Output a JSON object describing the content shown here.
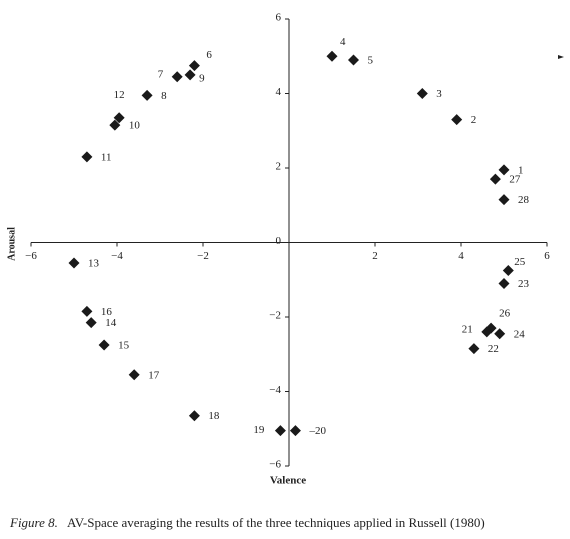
{
  "chart_data": {
    "type": "scatter",
    "xlabel": "Valence",
    "ylabel": "Arousal",
    "caption_label": "Figure 8.",
    "caption": "AV-Space averaging the results of the three techniques applied in Russell (1980)",
    "xlim": [
      -6,
      6
    ],
    "ylim": [
      -6,
      6
    ],
    "xticks": [
      {
        "value": -6,
        "label": "−6"
      },
      {
        "value": -4,
        "label": "−4"
      },
      {
        "value": -2,
        "label": "−2"
      },
      2,
      4,
      6
    ],
    "yticks": [
      {
        "value": -6,
        "label": "−6"
      },
      {
        "value": -4,
        "label": "−4"
      },
      {
        "value": -2,
        "label": "−2"
      },
      0,
      2,
      4,
      6
    ],
    "color": "#1a1a1a",
    "x": [
      5.0,
      3.9,
      3.1,
      1.0,
      1.5,
      -2.2,
      -2.6,
      -3.3,
      -2.3,
      -4.05,
      -4.7,
      -3.95,
      -5.0,
      -4.6,
      -4.3,
      -4.7,
      -3.6,
      -2.2,
      -0.2,
      0.15,
      4.6,
      4.3,
      5.0,
      4.9,
      5.1,
      4.7,
      4.8,
      5.0
    ],
    "values": [
      1.95,
      3.3,
      4.0,
      5.0,
      4.9,
      4.75,
      4.45,
      3.95,
      4.5,
      3.15,
      2.3,
      3.35,
      -0.55,
      -2.15,
      -2.75,
      -1.85,
      -3.55,
      -4.65,
      -5.05,
      -5.05,
      -2.4,
      -2.85,
      -1.1,
      -2.45,
      -0.75,
      -2.3,
      1.7,
      1.15
    ],
    "point_labels": [
      "1",
      "2",
      "3",
      "4",
      "5",
      "6",
      "7",
      "8",
      "9",
      "10",
      "11",
      "12",
      "13",
      "14",
      "15",
      "16",
      "17",
      "18",
      "19",
      "–20",
      "21",
      "22",
      "23",
      "24",
      "25",
      "26",
      "27",
      "28"
    ]
  }
}
